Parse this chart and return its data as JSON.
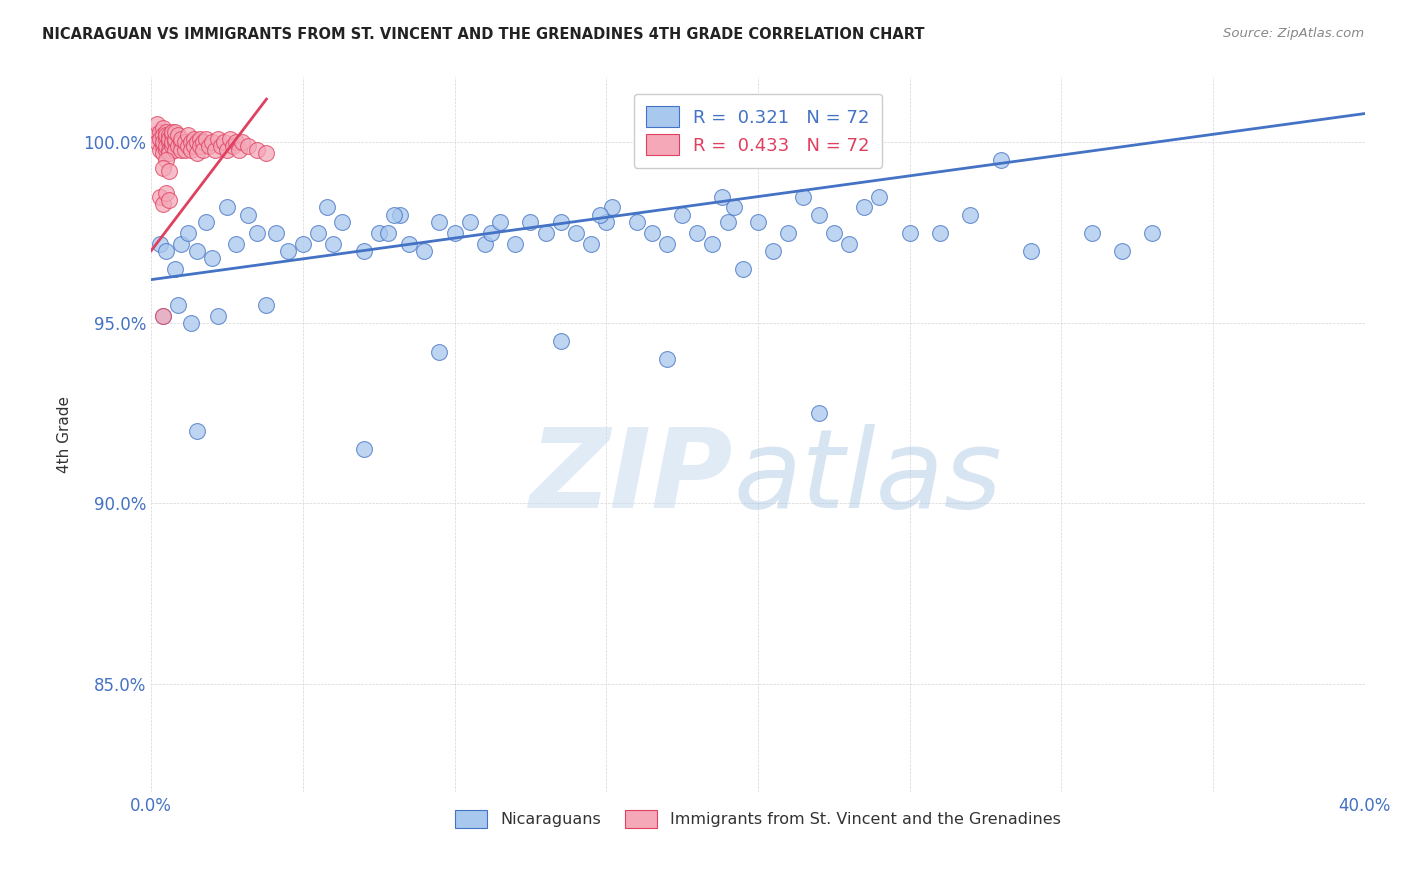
{
  "title": "NICARAGUAN VS IMMIGRANTS FROM ST. VINCENT AND THE GRENADINES 4TH GRADE CORRELATION CHART",
  "source": "Source: ZipAtlas.com",
  "ylabel": "4th Grade",
  "xlim": [
    0.0,
    40.0
  ],
  "ylim": [
    82.0,
    101.8
  ],
  "blue_R": 0.321,
  "blue_N": 72,
  "pink_R": 0.433,
  "pink_N": 72,
  "blue_color": "#A8C8EE",
  "pink_color": "#F4A8B8",
  "blue_line_color": "#4472C4",
  "pink_line_color": "#E04060",
  "legend_label_blue": "Nicaraguans",
  "legend_label_pink": "Immigrants from St. Vincent and the Grenadines",
  "blue_scatter_x": [
    0.3,
    0.5,
    0.8,
    1.0,
    1.2,
    1.5,
    1.8,
    2.0,
    2.5,
    2.8,
    3.2,
    3.5,
    4.1,
    4.5,
    5.0,
    5.5,
    6.0,
    6.3,
    7.0,
    7.5,
    7.8,
    8.2,
    8.5,
    9.0,
    9.5,
    10.0,
    10.5,
    11.0,
    11.2,
    12.0,
    12.5,
    13.0,
    13.5,
    14.0,
    14.5,
    15.0,
    15.2,
    16.0,
    16.5,
    17.0,
    17.5,
    18.0,
    18.5,
    19.0,
    19.2,
    20.0,
    20.5,
    21.0,
    21.5,
    22.0,
    22.5,
    23.0,
    24.0,
    25.0,
    26.0,
    27.0,
    28.0,
    29.0,
    31.0,
    32.0,
    33.0,
    5.8,
    8.0,
    11.5,
    14.8,
    18.8,
    23.5,
    0.4,
    0.9,
    1.3,
    2.2,
    3.8
  ],
  "blue_scatter_y": [
    97.2,
    97.0,
    96.5,
    97.2,
    97.5,
    97.0,
    97.8,
    96.8,
    98.2,
    97.2,
    98.0,
    97.5,
    97.5,
    97.0,
    97.2,
    97.5,
    97.2,
    97.8,
    97.0,
    97.5,
    97.5,
    98.0,
    97.2,
    97.0,
    97.8,
    97.5,
    97.8,
    97.2,
    97.5,
    97.2,
    97.8,
    97.5,
    97.8,
    97.5,
    97.2,
    97.8,
    98.2,
    97.8,
    97.5,
    97.2,
    98.0,
    97.5,
    97.2,
    97.8,
    98.2,
    97.8,
    97.0,
    97.5,
    98.5,
    98.0,
    97.5,
    97.2,
    98.5,
    97.5,
    97.5,
    98.0,
    99.5,
    97.0,
    97.5,
    97.0,
    97.5,
    98.2,
    98.0,
    97.8,
    98.0,
    98.5,
    98.2,
    95.2,
    95.5,
    95.0,
    95.2,
    95.5
  ],
  "blue_scatter_x2": [
    1.5,
    7.0,
    9.5,
    13.5,
    17.0,
    19.5,
    22.0
  ],
  "blue_scatter_y2": [
    92.0,
    91.5,
    94.2,
    94.5,
    94.0,
    96.5,
    92.5
  ],
  "pink_scatter_x": [
    0.1,
    0.2,
    0.2,
    0.3,
    0.3,
    0.3,
    0.4,
    0.4,
    0.4,
    0.4,
    0.4,
    0.5,
    0.5,
    0.5,
    0.5,
    0.5,
    0.6,
    0.6,
    0.6,
    0.6,
    0.6,
    0.7,
    0.7,
    0.7,
    0.7,
    0.8,
    0.8,
    0.8,
    0.8,
    0.9,
    0.9,
    1.0,
    1.0,
    1.0,
    1.1,
    1.1,
    1.2,
    1.2,
    1.3,
    1.3,
    1.4,
    1.4,
    1.5,
    1.5,
    1.6,
    1.6,
    1.7,
    1.7,
    1.8,
    1.9,
    2.0,
    2.1,
    2.2,
    2.3,
    2.4,
    2.5,
    2.6,
    2.7,
    2.8,
    2.9,
    3.0,
    3.2,
    3.5,
    3.8,
    0.5,
    0.4,
    0.6,
    0.3,
    0.4,
    0.5,
    0.6,
    0.4
  ],
  "pink_scatter_y": [
    100.2,
    100.5,
    100.0,
    100.3,
    99.8,
    100.1,
    100.4,
    99.9,
    100.2,
    99.7,
    100.0,
    100.1,
    99.8,
    100.3,
    99.9,
    100.2,
    100.0,
    99.8,
    100.2,
    99.7,
    100.1,
    100.2,
    99.9,
    100.0,
    100.3,
    100.0,
    99.8,
    100.1,
    100.3,
    99.9,
    100.2,
    100.0,
    99.8,
    100.1,
    99.8,
    100.0,
    99.9,
    100.2,
    100.0,
    99.8,
    100.1,
    99.9,
    100.0,
    99.7,
    100.1,
    99.9,
    100.0,
    99.8,
    100.1,
    99.9,
    100.0,
    99.8,
    100.1,
    99.9,
    100.0,
    99.8,
    100.1,
    99.9,
    100.0,
    99.8,
    100.0,
    99.9,
    99.8,
    99.7,
    99.5,
    99.3,
    99.2,
    98.5,
    98.3,
    98.6,
    98.4,
    95.2
  ],
  "blue_line_x": [
    0.0,
    40.0
  ],
  "blue_line_y": [
    96.2,
    100.8
  ],
  "pink_line_x": [
    0.0,
    3.8
  ],
  "pink_line_y": [
    97.0,
    101.2
  ]
}
